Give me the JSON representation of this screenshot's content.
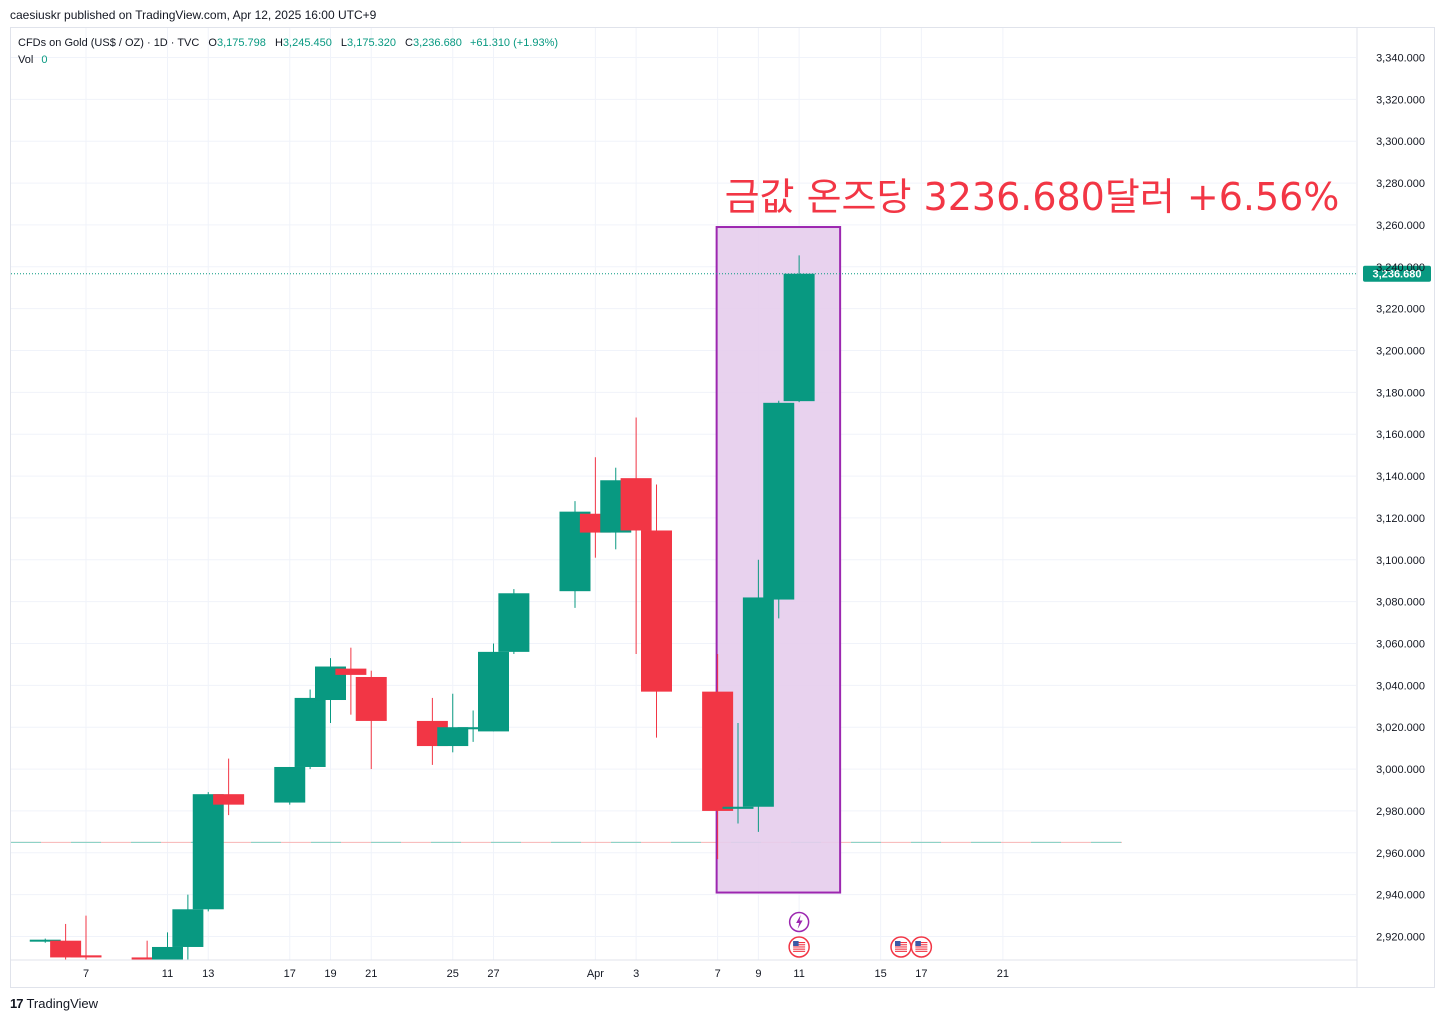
{
  "header": {
    "published_line": "caesiuskr published on TradingView.com, Apr 12, 2025 16:00 UTC+9"
  },
  "legend": {
    "symbol_line": "CFDs on Gold (US$ / OZ) · 1D · TVC",
    "o_label": "O",
    "o_value": "3,175.798",
    "h_label": "H",
    "h_value": "3,245.450",
    "l_label": "L",
    "l_value": "3,175.320",
    "c_label": "C",
    "c_value": "3,236.680",
    "change": "+61.310 (+1.93%)",
    "vol_label": "Vol",
    "vol_value": "0"
  },
  "annotation": {
    "text": "금값 온즈당 3236.680달러 +6.56%",
    "color": "#f23645",
    "box_fill": "#e6cdec",
    "box_stroke": "#9c27b0"
  },
  "price_tag": "3,236.680",
  "footer": {
    "logo_text": "TradingView",
    "logo_mark": "17"
  },
  "colors": {
    "up": "#089981",
    "down": "#f23645",
    "grid": "#f0f3fa",
    "text": "#131722",
    "event_icon": "#9c27b0"
  },
  "icons": [
    "lightning-event-icon",
    "us-flag-event-icon"
  ],
  "chart_data": {
    "type": "candlestick",
    "symbol": "CFDs on Gold (US$ / OZ)",
    "interval": "1D",
    "ylim": [
      2908,
      3350
    ],
    "y_ticks": [
      2920,
      2940,
      2960,
      2980,
      3000,
      3020,
      3040,
      3060,
      3080,
      3100,
      3120,
      3140,
      3160,
      3180,
      3200,
      3220,
      3240,
      3260,
      3280,
      3300,
      3320,
      3340
    ],
    "y_tick_labels": [
      "2,920.000",
      "2,940.000",
      "2,960.000",
      "2,980.000",
      "3,000.000",
      "3,020.000",
      "3,040.000",
      "3,060.000",
      "3,080.000",
      "3,100.000",
      "3,120.000",
      "3,140.000",
      "3,160.000",
      "3,180.000",
      "3,200.000",
      "3,220.000",
      "3,240.000",
      "3,260.000",
      "3,280.000",
      "3,300.000",
      "3,320.000",
      "3,340.000"
    ],
    "x_ticks": [
      {
        "date": "2025-03-07",
        "label": "7"
      },
      {
        "date": "2025-03-11",
        "label": "11"
      },
      {
        "date": "2025-03-13",
        "label": "13"
      },
      {
        "date": "2025-03-17",
        "label": "17"
      },
      {
        "date": "2025-03-19",
        "label": "19"
      },
      {
        "date": "2025-03-21",
        "label": "21"
      },
      {
        "date": "2025-03-25",
        "label": "25"
      },
      {
        "date": "2025-03-27",
        "label": "27"
      },
      {
        "date": "2025-04-01",
        "label": "Apr"
      },
      {
        "date": "2025-04-03",
        "label": "3"
      },
      {
        "date": "2025-04-07",
        "label": "7"
      },
      {
        "date": "2025-04-09",
        "label": "9"
      },
      {
        "date": "2025-04-11",
        "label": "11"
      },
      {
        "date": "2025-04-15",
        "label": "15"
      },
      {
        "date": "2025-04-17",
        "label": "17"
      },
      {
        "date": "2025-04-21",
        "label": "21"
      }
    ],
    "candles": [
      {
        "date": "2025-03-05",
        "o": 2918,
        "h": 2919,
        "l": 2917,
        "c": 2918
      },
      {
        "date": "2025-03-06",
        "o": 2918,
        "h": 2926,
        "l": 2909,
        "c": 2910
      },
      {
        "date": "2025-03-07",
        "o": 2911,
        "h": 2930,
        "l": 2896,
        "c": 2910
      },
      {
        "date": "2025-03-10",
        "o": 2910,
        "h": 2918,
        "l": 2880,
        "c": 2909
      },
      {
        "date": "2025-03-11",
        "o": 2909,
        "h": 2922,
        "l": 2905,
        "c": 2915
      },
      {
        "date": "2025-03-12",
        "o": 2915,
        "h": 2940,
        "l": 2909,
        "c": 2933
      },
      {
        "date": "2025-03-13",
        "o": 2933,
        "h": 2989,
        "l": 2932,
        "c": 2988
      },
      {
        "date": "2025-03-14",
        "o": 2988,
        "h": 3005,
        "l": 2978,
        "c": 2983
      },
      {
        "date": "2025-03-17",
        "o": 2984,
        "h": 3001,
        "l": 2983,
        "c": 3001
      },
      {
        "date": "2025-03-18",
        "o": 3001,
        "h": 3038,
        "l": 3000,
        "c": 3034
      },
      {
        "date": "2025-03-19",
        "o": 3033,
        "h": 3053,
        "l": 3022,
        "c": 3049
      },
      {
        "date": "2025-03-20",
        "o": 3048,
        "h": 3058,
        "l": 3026,
        "c": 3045
      },
      {
        "date": "2025-03-21",
        "o": 3044,
        "h": 3047,
        "l": 3000,
        "c": 3023
      },
      {
        "date": "2025-03-24",
        "o": 3023,
        "h": 3034,
        "l": 3002,
        "c": 3011
      },
      {
        "date": "2025-03-25",
        "o": 3011,
        "h": 3036,
        "l": 3008,
        "c": 3020
      },
      {
        "date": "2025-03-26",
        "o": 3019,
        "h": 3028,
        "l": 3013,
        "c": 3020
      },
      {
        "date": "2025-03-27",
        "o": 3018,
        "h": 3060,
        "l": 3018,
        "c": 3056
      },
      {
        "date": "2025-03-28",
        "o": 3056,
        "h": 3086,
        "l": 3055,
        "c": 3084
      },
      {
        "date": "2025-03-31",
        "o": 3085,
        "h": 3128,
        "l": 3077,
        "c": 3123
      },
      {
        "date": "2025-04-01",
        "o": 3122,
        "h": 3149,
        "l": 3101,
        "c": 3113
      },
      {
        "date": "2025-04-02",
        "o": 3113,
        "h": 3144,
        "l": 3105,
        "c": 3138
      },
      {
        "date": "2025-04-03",
        "o": 3139,
        "h": 3168,
        "l": 3055,
        "c": 3114
      },
      {
        "date": "2025-04-04",
        "o": 3114,
        "h": 3136,
        "l": 3015,
        "c": 3037
      },
      {
        "date": "2025-04-07",
        "o": 3037,
        "h": 3055,
        "l": 2957,
        "c": 2980
      },
      {
        "date": "2025-04-08",
        "o": 2981,
        "h": 3022,
        "l": 2974,
        "c": 2982
      },
      {
        "date": "2025-04-09",
        "o": 2982,
        "h": 3100,
        "l": 2970,
        "c": 3082
      },
      {
        "date": "2025-04-10",
        "o": 3081,
        "h": 3176,
        "l": 3072,
        "c": 3175
      },
      {
        "date": "2025-04-11",
        "o": 3175.798,
        "h": 3245.45,
        "l": 3175.32,
        "c": 3236.68
      }
    ],
    "horizontal_line": {
      "value": 2965
    },
    "last_price_line": {
      "value": 3236.68
    },
    "highlight_range": {
      "from": "2025-04-07",
      "to": "2025-04-11",
      "y_from": 2941,
      "y_to": 3259
    },
    "events": [
      {
        "date": "2025-04-11",
        "type": "lightning"
      },
      {
        "date": "2025-04-11",
        "type": "us-flag"
      },
      {
        "date": "2025-04-16",
        "type": "us-flag"
      },
      {
        "date": "2025-04-17",
        "type": "us-flag"
      }
    ]
  }
}
